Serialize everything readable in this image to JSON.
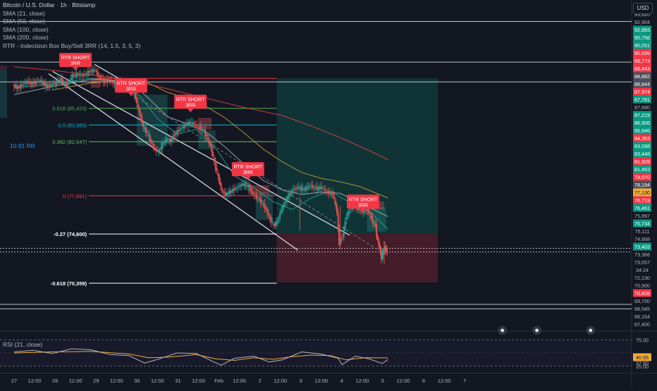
{
  "header": {
    "symbol": "Bitcoin / U.S. Dollar · 1h · Bitstamp",
    "indicators": [
      "SMA (21, close)",
      "SMA (50, close)",
      "SMA (100, close)",
      "SMA (200, close)",
      "RTR - Indecision Box Buy/Sell 3RR (14, 1.5, 3, 5, 3)"
    ],
    "currency_button": "USD",
    "rsi_title": "RSI (21, close)"
  },
  "colors": {
    "background": "#131722",
    "up_candle": "#26a69a",
    "down_candle": "#ef5350",
    "label_green": "#089981",
    "label_red": "#f23645",
    "sma21": "#26a69a",
    "sma50": "#b2b5be",
    "sma100": "#c9a43a",
    "sma200": "#e8473f",
    "rsi": "#b2b5be",
    "rsi_ma": "#f2a93b",
    "fib_618": "#4caf50",
    "fib_5": "#00bcd4",
    "fib_382": "#66bb6a",
    "fib_0": "#f23645"
  },
  "chart_data": [
    {
      "type": "candlestick",
      "title": "Bitcoin / U.S. Dollar · 1h · Bitstamp",
      "ylim": [
        66600,
        93900
      ],
      "x_ticks": [
        "27",
        "12:00",
        "28",
        "12:00",
        "29",
        "12:00",
        "30",
        "12:00",
        "31",
        "12:00",
        "Feb",
        "12:00",
        "2",
        "12:00",
        "3",
        "12:00",
        "4",
        "12:00",
        "5",
        "12:00",
        "6",
        "12:00",
        "7"
      ],
      "x_range": [
        0,
        23.5
      ],
      "price_path": [
        [
          0,
          87400
        ],
        [
          0.3,
          87200
        ],
        [
          0.7,
          87700
        ],
        [
          1.0,
          87550
        ],
        [
          1.4,
          87800
        ],
        [
          1.8,
          87300
        ],
        [
          2.2,
          87600
        ],
        [
          2.5,
          87900
        ],
        [
          2.8,
          87450
        ],
        [
          3.1,
          88200
        ],
        [
          3.4,
          88300
        ],
        [
          3.7,
          88250
        ],
        [
          4.0,
          88600
        ],
        [
          4.3,
          88700
        ],
        [
          4.5,
          88100
        ],
        [
          4.8,
          87700
        ],
        [
          5.0,
          87900
        ],
        [
          5.3,
          87500
        ],
        [
          5.6,
          87600
        ],
        [
          5.9,
          87300
        ],
        [
          6.2,
          87100
        ],
        [
          6.4,
          86300
        ],
        [
          6.6,
          85000
        ],
        [
          6.8,
          83800
        ],
        [
          7.0,
          83300
        ],
        [
          7.2,
          82500
        ],
        [
          7.4,
          81900
        ],
        [
          7.6,
          81700
        ],
        [
          7.8,
          82300
        ],
        [
          8.0,
          82800
        ],
        [
          8.2,
          82600
        ],
        [
          8.5,
          83300
        ],
        [
          8.7,
          83600
        ],
        [
          9.0,
          84000
        ],
        [
          9.3,
          84200
        ],
        [
          9.6,
          83900
        ],
        [
          9.9,
          83600
        ],
        [
          10.1,
          83000
        ],
        [
          10.3,
          82200
        ],
        [
          10.5,
          80800
        ],
        [
          10.7,
          79500
        ],
        [
          10.9,
          78300
        ],
        [
          11.1,
          78000
        ],
        [
          11.4,
          78300
        ],
        [
          11.7,
          78600
        ],
        [
          12.0,
          78900
        ],
        [
          12.3,
          78700
        ],
        [
          12.5,
          78100
        ],
        [
          12.8,
          77600
        ],
        [
          13.0,
          77300
        ],
        [
          13.2,
          76700
        ],
        [
          13.4,
          75900
        ],
        [
          13.6,
          75300
        ],
        [
          13.8,
          75700
        ],
        [
          14.0,
          76700
        ],
        [
          14.3,
          77700
        ],
        [
          14.6,
          78400
        ],
        [
          14.9,
          78600
        ],
        [
          15.2,
          78400
        ],
        [
          15.5,
          78800
        ],
        [
          15.8,
          78500
        ],
        [
          16.1,
          78600
        ],
        [
          16.4,
          78200
        ],
        [
          16.7,
          78000
        ],
        [
          16.9,
          76500
        ],
        [
          17.0,
          73700
        ],
        [
          17.2,
          74500
        ],
        [
          17.4,
          76200
        ],
        [
          17.7,
          77000
        ],
        [
          18.0,
          76800
        ],
        [
          18.3,
          76500
        ],
        [
          18.5,
          76700
        ],
        [
          18.7,
          75900
        ],
        [
          18.9,
          75300
        ],
        [
          19.0,
          74000
        ],
        [
          19.1,
          73600
        ],
        [
          19.2,
          72500
        ],
        [
          19.3,
          73200
        ],
        [
          19.4,
          73400
        ],
        [
          19.5,
          73057
        ]
      ],
      "series": [
        {
          "name": "SMA (21, close)",
          "points": [
            [
              0,
              87200
            ],
            [
              2,
              87500
            ],
            [
              4,
              88000
            ],
            [
              5.5,
              87700
            ],
            [
              6.5,
              86600
            ],
            [
              7.5,
              84500
            ],
            [
              8.5,
              83200
            ],
            [
              9.5,
              83600
            ],
            [
              10.5,
              82000
            ],
            [
              11.5,
              79600
            ],
            [
              12.5,
              78600
            ],
            [
              13.5,
              77400
            ],
            [
              14.5,
              76700
            ],
            [
              15.5,
              77700
            ],
            [
              16.5,
              78300
            ],
            [
              17.5,
              77300
            ],
            [
              18.5,
              76600
            ],
            [
              19.5,
              75000
            ]
          ]
        },
        {
          "name": "SMA (50, close)",
          "points": [
            [
              0,
              86600
            ],
            [
              2,
              87300
            ],
            [
              4,
              87900
            ],
            [
              6,
              87800
            ],
            [
              7,
              86300
            ],
            [
              8,
              84700
            ],
            [
              9,
              84100
            ],
            [
              10,
              83400
            ],
            [
              11,
              82100
            ],
            [
              12,
              80600
            ],
            [
              13,
              79200
            ],
            [
              14,
              78400
            ],
            [
              15,
              78000
            ],
            [
              16,
              78200
            ],
            [
              17,
              78100
            ],
            [
              18,
              77300
            ],
            [
              19.5,
              76100
            ]
          ]
        },
        {
          "name": "SMA (100, close)",
          "points": [
            [
              2,
              87000
            ],
            [
              4,
              87600
            ],
            [
              6,
              87900
            ],
            [
              7,
              87600
            ],
            [
              8,
              86800
            ],
            [
              9,
              86300
            ],
            [
              10,
              85600
            ],
            [
              11,
              84600
            ],
            [
              12,
              83300
            ],
            [
              13,
              81900
            ],
            [
              14,
              80800
            ],
            [
              15,
              79900
            ],
            [
              16,
              79400
            ],
            [
              17,
              79100
            ],
            [
              18,
              78700
            ],
            [
              19.5,
              77700
            ]
          ]
        },
        {
          "name": "SMA (200, close)",
          "points": [
            [
              0,
              89000
            ],
            [
              2,
              88700
            ],
            [
              4,
              88300
            ],
            [
              6,
              87900
            ],
            [
              8,
              87100
            ],
            [
              10,
              86300
            ],
            [
              12,
              85500
            ],
            [
              14,
              84800
            ],
            [
              15.5,
              83900
            ],
            [
              17,
              82900
            ],
            [
              18.5,
              81800
            ],
            [
              19.5,
              81000
            ]
          ]
        }
      ],
      "y_ticks": [
        {
          "v": "93,620",
          "kind": "plain"
        },
        {
          "v": "92,904",
          "kind": "plain"
        },
        {
          "v": "92,893",
          "kind": "green"
        },
        {
          "v": "90,756",
          "kind": "green"
        },
        {
          "v": "90,051",
          "kind": "green"
        },
        {
          "v": "90,039",
          "kind": "red"
        },
        {
          "v": "89,773",
          "kind": "red"
        },
        {
          "v": "89,443",
          "kind": "red"
        },
        {
          "v": "88,882",
          "kind": "gray"
        },
        {
          "v": "88,844",
          "kind": "gray"
        },
        {
          "v": "87,974",
          "kind": "red"
        },
        {
          "v": "87,781",
          "kind": "green"
        },
        {
          "v": "87,680",
          "kind": "plain"
        },
        {
          "v": "87,219",
          "kind": "green"
        },
        {
          "v": "86,906",
          "kind": "green"
        },
        {
          "v": "85,946",
          "kind": "green"
        },
        {
          "v": "84,353",
          "kind": "red"
        },
        {
          "v": "83,598",
          "kind": "green"
        },
        {
          "v": "83,448",
          "kind": "green"
        },
        {
          "v": "81,509",
          "kind": "red"
        },
        {
          "v": "81,463",
          "kind": "green"
        },
        {
          "v": "79,070",
          "kind": "red"
        },
        {
          "v": "78,194",
          "kind": "gray"
        },
        {
          "v": "77,130",
          "kind": "yellow"
        },
        {
          "v": "76,719",
          "kind": "red"
        },
        {
          "v": "76,461",
          "kind": "green"
        },
        {
          "v": "75,897",
          "kind": "plain"
        },
        {
          "v": "75,734",
          "kind": "green"
        },
        {
          "v": "75,111",
          "kind": "plain"
        },
        {
          "v": "74,668",
          "kind": "plain"
        },
        {
          "v": "73,403",
          "kind": "green"
        },
        {
          "v": "73,366",
          "kind": "plain"
        },
        {
          "v": "73,057",
          "kind": "plain"
        },
        {
          "v": "34:24",
          "kind": "plain"
        },
        {
          "v": "72,130",
          "kind": "plain"
        },
        {
          "v": "70,900",
          "kind": "plain"
        },
        {
          "v": "70,428",
          "kind": "red"
        },
        {
          "v": "69,700",
          "kind": "plain"
        },
        {
          "v": "68,545",
          "kind": "plain"
        },
        {
          "v": "68,154",
          "kind": "plain"
        },
        {
          "v": "67,400",
          "kind": "plain"
        }
      ],
      "fib_levels": [
        {
          "label": "0.618 (85,423)",
          "price": 85423,
          "color": "#4caf50",
          "x_from": 3.9
        },
        {
          "label": "0.5 (83,985)",
          "price": 83985,
          "color": "#00bcd4",
          "x_from": 3.9
        },
        {
          "label": "0.382 (82,547)",
          "price": 82547,
          "color": "#66bb6a",
          "x_from": 3.9
        },
        {
          "label": "0 (77,891)",
          "price": 77891,
          "color": "#f23645",
          "x_from": 3.9
        },
        {
          "label": "-0.27 (74,600)",
          "price": 74600,
          "color": "#ffffff",
          "x_from": 3.9
        },
        {
          "label": "-0.618 (70,359)",
          "price": 70359,
          "color": "#ffffff",
          "x_from": 3.9
        }
      ],
      "horizontal_lines": [
        92900,
        89400,
        87700,
        73366,
        73057,
        68545,
        68154
      ],
      "signals": [
        {
          "label": "RTR SHORT 3RR",
          "x": 3.2,
          "price": 89400
        },
        {
          "label": "RTR SHORT 3RR",
          "x": 6.1,
          "price": 87200
        },
        {
          "label": "RTR SHORT 3RR",
          "x": 9.2,
          "price": 85800
        },
        {
          "label": "RTR SHORT 3RR",
          "x": 12.2,
          "price": 80000
        },
        {
          "label": "RTR SHORT 3RR",
          "x": 18.2,
          "price": 77200
        }
      ],
      "annotation": "10.91 RR",
      "position": {
        "x_from": 13.7,
        "x_to": 22.1,
        "entry": 74668,
        "stop": 88000,
        "target": 70428
      }
    },
    {
      "type": "line",
      "title": "RSI (21, close)",
      "ylim": [
        22,
        78
      ],
      "y_ticks": [
        {
          "v": "75.00",
          "kind": "plain"
        },
        {
          "v": "40.65",
          "kind": "yellow"
        },
        {
          "v": "37.60",
          "kind": "plain"
        },
        {
          "v": "25.00",
          "kind": "plain"
        }
      ],
      "series": [
        {
          "name": "RSI",
          "points": [
            [
              0,
              52
            ],
            [
              1,
              55
            ],
            [
              2,
              49
            ],
            [
              3,
              58
            ],
            [
              4,
              56
            ],
            [
              5,
              47
            ],
            [
              6,
              45
            ],
            [
              6.8,
              31
            ],
            [
              7.5,
              38
            ],
            [
              8.5,
              50
            ],
            [
              9.5,
              49
            ],
            [
              10.3,
              35
            ],
            [
              10.8,
              27
            ],
            [
              11.5,
              40
            ],
            [
              12.5,
              44
            ],
            [
              13.3,
              33
            ],
            [
              14,
              37
            ],
            [
              15,
              52
            ],
            [
              16,
              48
            ],
            [
              16.9,
              40
            ],
            [
              17.1,
              28
            ],
            [
              17.8,
              44
            ],
            [
              18.5,
              39
            ],
            [
              19.2,
              30
            ],
            [
              19.5,
              37.6
            ]
          ]
        },
        {
          "name": "RSI MA",
          "points": [
            [
              0,
              50
            ],
            [
              2,
              52
            ],
            [
              4,
              53
            ],
            [
              6,
              48
            ],
            [
              7,
              41
            ],
            [
              8,
              42
            ],
            [
              9.5,
              47
            ],
            [
              10.5,
              39
            ],
            [
              11.5,
              36
            ],
            [
              12.5,
              41
            ],
            [
              13.5,
              38
            ],
            [
              14.5,
              43
            ],
            [
              15.5,
              46
            ],
            [
              16.5,
              45
            ],
            [
              17.3,
              37
            ],
            [
              18.3,
              41
            ],
            [
              19.5,
              40.65
            ]
          ]
        }
      ]
    }
  ]
}
